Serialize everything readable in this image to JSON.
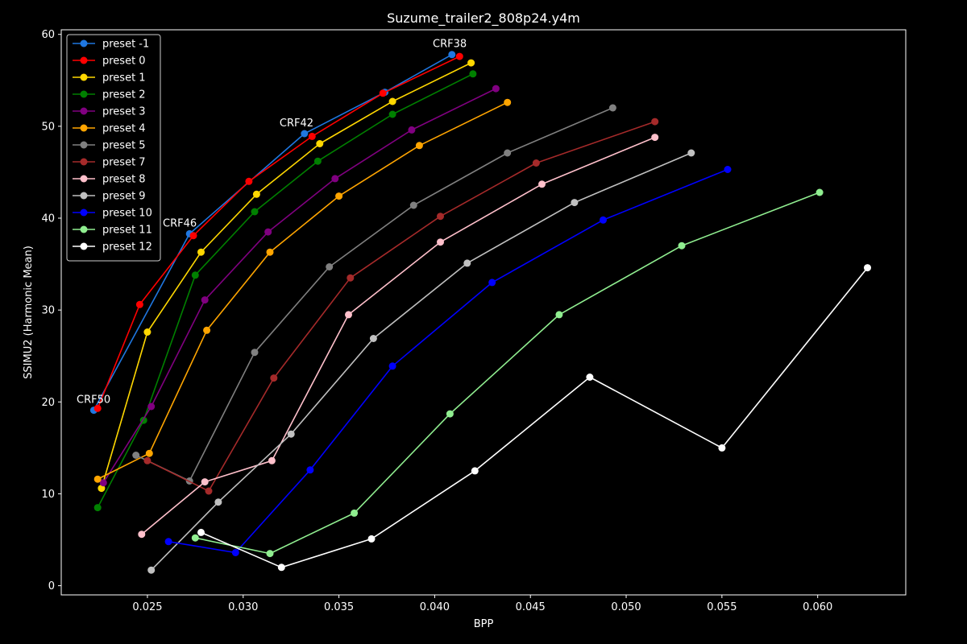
{
  "chart_data": {
    "type": "line",
    "title": "Suzume_trailer2_808p24.y4m",
    "xlabel": "BPP",
    "ylabel": "SSIMU2 (Harmonic Mean)",
    "xlim": [
      0.0205,
      0.0646
    ],
    "ylim": [
      -1,
      60.5
    ],
    "xticks": [
      0.025,
      0.03,
      0.035,
      0.04,
      0.045,
      0.05,
      0.055,
      0.06
    ],
    "xtick_labels": [
      "0.025",
      "0.030",
      "0.035",
      "0.040",
      "0.045",
      "0.050",
      "0.055",
      "0.060"
    ],
    "yticks": [
      0,
      10,
      20,
      30,
      40,
      50,
      60
    ],
    "ytick_labels": [
      "0",
      "10",
      "20",
      "30",
      "40",
      "50",
      "60"
    ],
    "legend_position": "top-left",
    "grid": false,
    "series": [
      {
        "name": "preset -1",
        "color": "#1f77e0",
        "x": [
          0.0222,
          0.0272,
          0.0332,
          0.0374,
          0.0409
        ],
        "y": [
          19.1,
          38.3,
          49.2,
          53.7,
          57.8
        ]
      },
      {
        "name": "preset 0",
        "color": "#ff0000",
        "x": [
          0.0224,
          0.0246,
          0.0274,
          0.0303,
          0.0336,
          0.0373,
          0.0413
        ],
        "y": [
          19.3,
          30.6,
          38.1,
          44.0,
          48.9,
          53.6,
          57.6
        ]
      },
      {
        "name": "preset 1",
        "color": "#ffd700",
        "x": [
          0.0226,
          0.025,
          0.0278,
          0.0307,
          0.034,
          0.0378,
          0.0419
        ],
        "y": [
          10.6,
          27.6,
          36.3,
          42.6,
          48.1,
          52.7,
          56.9
        ]
      },
      {
        "name": "preset 2",
        "color": "#008000",
        "x": [
          0.0224,
          0.0248,
          0.0275,
          0.0306,
          0.0339,
          0.0378,
          0.042
        ],
        "y": [
          8.5,
          18.0,
          33.8,
          40.7,
          46.2,
          51.3,
          55.7
        ]
      },
      {
        "name": "preset 3",
        "color": "#800080",
        "x": [
          0.0227,
          0.0252,
          0.028,
          0.0313,
          0.0348,
          0.0388,
          0.0432
        ],
        "y": [
          11.2,
          19.5,
          31.1,
          38.5,
          44.3,
          49.6,
          54.1
        ]
      },
      {
        "name": "preset 4",
        "color": "#ffa500",
        "x": [
          0.0224,
          0.0251,
          0.0281,
          0.0314,
          0.035,
          0.0392,
          0.0438
        ],
        "y": [
          11.6,
          14.4,
          27.8,
          36.3,
          42.4,
          47.9,
          52.6
        ]
      },
      {
        "name": "preset 5",
        "color": "#808080",
        "x": [
          0.0244,
          0.0272,
          0.0306,
          0.0345,
          0.0389,
          0.0438,
          0.0493
        ],
        "y": [
          14.2,
          11.4,
          25.4,
          34.7,
          41.4,
          47.1,
          52.0
        ]
      },
      {
        "name": "preset 7",
        "color": "#a52a2a",
        "x": [
          0.025,
          0.0282,
          0.0316,
          0.0356,
          0.0403,
          0.0453,
          0.0515
        ],
        "y": [
          13.6,
          10.3,
          22.6,
          33.5,
          40.2,
          46.0,
          50.5
        ]
      },
      {
        "name": "preset 8",
        "color": "#ffc0cb",
        "x": [
          0.0247,
          0.028,
          0.0315,
          0.0355,
          0.0403,
          0.0456,
          0.0515
        ],
        "y": [
          5.6,
          11.3,
          13.6,
          29.5,
          37.4,
          43.7,
          48.8
        ]
      },
      {
        "name": "preset 9",
        "color": "#c0c0c0",
        "x": [
          0.0252,
          0.0287,
          0.0325,
          0.0368,
          0.0417,
          0.0473,
          0.0534
        ],
        "y": [
          1.7,
          9.1,
          16.5,
          26.9,
          35.1,
          41.7,
          47.1
        ]
      },
      {
        "name": "preset 10",
        "color": "#0000ff",
        "x": [
          0.0261,
          0.0296,
          0.0335,
          0.0378,
          0.043,
          0.0488,
          0.0553
        ],
        "y": [
          4.8,
          3.6,
          12.6,
          23.9,
          33.0,
          39.8,
          45.3
        ]
      },
      {
        "name": "preset 11",
        "color": "#90ee90",
        "x": [
          0.0275,
          0.0314,
          0.0358,
          0.0408,
          0.0465,
          0.0529,
          0.0601
        ],
        "y": [
          5.2,
          3.5,
          7.9,
          18.7,
          29.5,
          37.0,
          42.8
        ]
      },
      {
        "name": "preset 12",
        "color": "#ffffff",
        "x": [
          0.0278,
          0.032,
          0.0367,
          0.0421,
          0.0481,
          0.055,
          0.0626
        ],
        "y": [
          5.8,
          2.0,
          5.1,
          12.5,
          22.7,
          15.0,
          34.6
        ]
      }
    ],
    "annotations": [
      {
        "text": "CRF50",
        "x": 0.0213,
        "y": 19.9
      },
      {
        "text": "CRF46",
        "x": 0.0258,
        "y": 39.1
      },
      {
        "text": "CRF42",
        "x": 0.0319,
        "y": 50.0
      },
      {
        "text": "CRF38",
        "x": 0.0399,
        "y": 58.6
      }
    ]
  }
}
